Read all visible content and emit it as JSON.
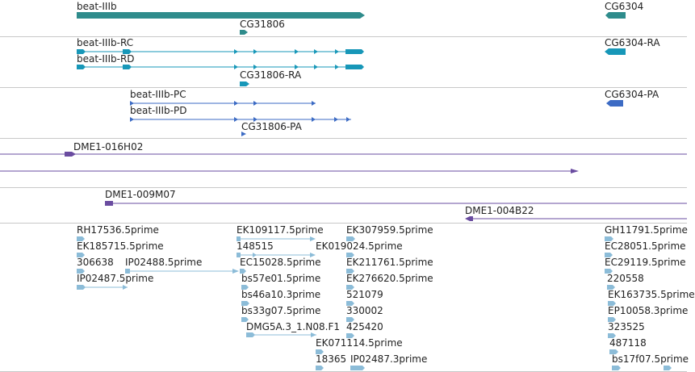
{
  "tracks": {
    "gene": {
      "labels": [
        "beat-IIIb",
        "CG31806",
        "CG6304"
      ],
      "color": "#2f8c8c"
    },
    "transcript": {
      "labels": [
        "beat-IIIb-RC",
        "beat-IIIb-RD",
        "CG31806-RA",
        "CG6304-RA"
      ],
      "color": "#1797b8"
    },
    "protein": {
      "labels": [
        "beat-IIIb-PC",
        "beat-IIIb-PD",
        "CG31806-PA",
        "CG6304-PA"
      ],
      "color": "#3c6bc4"
    },
    "clone": {
      "labels": [
        "DME1-016H02",
        "DME1-009M07",
        "DME1-004B22"
      ],
      "color": "#6a4ca0"
    },
    "est": {
      "labels": [
        "RH17536.5prime",
        "EK185715.5prime",
        "306638",
        "IP02488.5prime",
        "IP02487.5prime",
        "EK109117.5prime",
        "148515",
        "EK019024.5prime",
        "EC15028.5prime",
        "bs57e01.5prime",
        "bs46a10.3prime",
        "bs33g07.5prime",
        "DMG5A.3_1.N08.F1",
        "EK071114.5prime",
        "18365",
        "EK307959.5prime",
        "EK211761.5prime",
        "EK276620.5prime",
        "521079",
        "330002",
        "425420",
        "IP02487.3prime",
        "GH11791.5prime",
        "EC28051.5prime",
        "EC29119.5prime",
        "220558",
        "EK163735.5prime",
        "EP10058.3prime",
        "323525",
        "487118",
        "bs17f07.5prime"
      ],
      "color": "#8cbcd8"
    }
  }
}
